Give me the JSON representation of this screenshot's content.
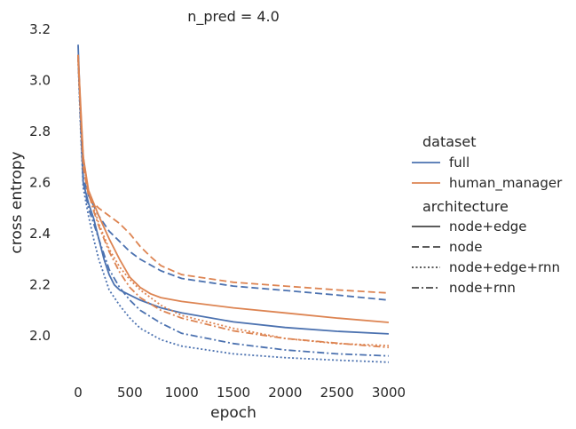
{
  "chart_data": {
    "type": "line",
    "title": "n_pred = 4.0",
    "xlabel": "epoch",
    "ylabel": "cross entropy",
    "xlim": [
      -50,
      3000
    ],
    "ylim": [
      1.82,
      3.2
    ],
    "xticks": [
      0,
      500,
      1000,
      1500,
      2000,
      2500,
      3000
    ],
    "yticks": [
      2.0,
      2.2,
      2.4,
      2.6,
      2.8,
      3.0,
      3.2
    ],
    "xtick_labels": [
      "0",
      "500",
      "1000",
      "1500",
      "2000",
      "2500",
      "3000"
    ],
    "ytick_labels": [
      "2.0",
      "2.2",
      "2.4",
      "2.6",
      "2.8",
      "3.0",
      "3.2"
    ],
    "grid": false,
    "legend": {
      "placement": "right",
      "hue_title": "dataset",
      "hue_entries": [
        {
          "label": "full",
          "color": "#4c72b0"
        },
        {
          "label": "human_manager",
          "color": "#dd8452"
        }
      ],
      "style_title": "architecture",
      "style_entries": [
        {
          "label": "node+edge",
          "dash": "solid"
        },
        {
          "label": "node",
          "dash": "dashed"
        },
        {
          "label": "node+edge+rnn",
          "dash": "dotted"
        },
        {
          "label": "node+rnn",
          "dash": "dashdot"
        }
      ]
    },
    "series": [
      {
        "dataset": "full",
        "architecture": "node+edge",
        "color": "#4c72b0",
        "dash": "solid",
        "x": [
          0,
          25,
          50,
          100,
          150,
          200,
          250,
          300,
          350,
          400,
          500,
          600,
          800,
          1000,
          1500,
          2000,
          2500,
          3000
        ],
        "y": [
          3.14,
          2.85,
          2.6,
          2.52,
          2.46,
          2.38,
          2.3,
          2.24,
          2.2,
          2.18,
          2.16,
          2.14,
          2.11,
          2.09,
          2.055,
          2.033,
          2.018,
          2.008
        ]
      },
      {
        "dataset": "full",
        "architecture": "node",
        "color": "#4c72b0",
        "dash": "dashed",
        "x": [
          0,
          25,
          50,
          100,
          150,
          200,
          300,
          400,
          500,
          600,
          800,
          1000,
          1500,
          2000,
          2500,
          3000
        ],
        "y": [
          3.1,
          2.85,
          2.62,
          2.55,
          2.51,
          2.47,
          2.41,
          2.37,
          2.33,
          2.3,
          2.255,
          2.225,
          2.195,
          2.178,
          2.16,
          2.14
        ]
      },
      {
        "dataset": "full",
        "architecture": "node+edge+rnn",
        "color": "#4c72b0",
        "dash": "dotted",
        "x": [
          0,
          25,
          50,
          100,
          150,
          200,
          300,
          400,
          500,
          600,
          800,
          1000,
          1500,
          2000,
          2500,
          3000
        ],
        "y": [
          3.08,
          2.8,
          2.58,
          2.47,
          2.38,
          2.3,
          2.18,
          2.12,
          2.07,
          2.03,
          1.985,
          1.96,
          1.93,
          1.915,
          1.905,
          1.897
        ]
      },
      {
        "dataset": "full",
        "architecture": "node+rnn",
        "color": "#4c72b0",
        "dash": "dashdot",
        "x": [
          0,
          25,
          50,
          100,
          150,
          200,
          300,
          400,
          500,
          600,
          800,
          1000,
          1500,
          2000,
          2500,
          3000
        ],
        "y": [
          3.1,
          2.82,
          2.6,
          2.5,
          2.44,
          2.38,
          2.26,
          2.19,
          2.14,
          2.1,
          2.05,
          2.01,
          1.97,
          1.945,
          1.93,
          1.922
        ]
      },
      {
        "dataset": "human_manager",
        "architecture": "node+edge",
        "color": "#dd8452",
        "dash": "solid",
        "x": [
          0,
          25,
          50,
          100,
          150,
          200,
          300,
          400,
          500,
          600,
          700,
          800,
          1000,
          1500,
          2000,
          2500,
          3000
        ],
        "y": [
          3.1,
          2.9,
          2.7,
          2.57,
          2.52,
          2.47,
          2.38,
          2.3,
          2.23,
          2.19,
          2.165,
          2.15,
          2.135,
          2.11,
          2.09,
          2.07,
          2.053
        ]
      },
      {
        "dataset": "human_manager",
        "architecture": "node",
        "color": "#dd8452",
        "dash": "dashed",
        "x": [
          0,
          25,
          50,
          100,
          150,
          200,
          300,
          400,
          500,
          600,
          700,
          800,
          1000,
          1500,
          2000,
          2500,
          3000
        ],
        "y": [
          3.08,
          2.86,
          2.66,
          2.55,
          2.52,
          2.5,
          2.47,
          2.44,
          2.4,
          2.35,
          2.31,
          2.275,
          2.24,
          2.21,
          2.195,
          2.18,
          2.168
        ]
      },
      {
        "dataset": "human_manager",
        "architecture": "node+edge+rnn",
        "color": "#dd8452",
        "dash": "dotted",
        "x": [
          0,
          25,
          50,
          100,
          150,
          200,
          300,
          400,
          500,
          600,
          800,
          1000,
          1500,
          2000,
          2500,
          3000
        ],
        "y": [
          3.1,
          2.86,
          2.68,
          2.56,
          2.5,
          2.44,
          2.34,
          2.27,
          2.22,
          2.18,
          2.12,
          2.08,
          2.03,
          1.99,
          1.97,
          1.962
        ]
      },
      {
        "dataset": "human_manager",
        "architecture": "node+rnn",
        "color": "#dd8452",
        "dash": "dashdot",
        "x": [
          0,
          25,
          50,
          100,
          150,
          200,
          300,
          400,
          500,
          600,
          800,
          1000,
          1500,
          2000,
          2500,
          3000
        ],
        "y": [
          3.1,
          2.88,
          2.7,
          2.56,
          2.49,
          2.43,
          2.33,
          2.25,
          2.19,
          2.15,
          2.1,
          2.07,
          2.02,
          1.99,
          1.972,
          1.955
        ]
      }
    ]
  }
}
